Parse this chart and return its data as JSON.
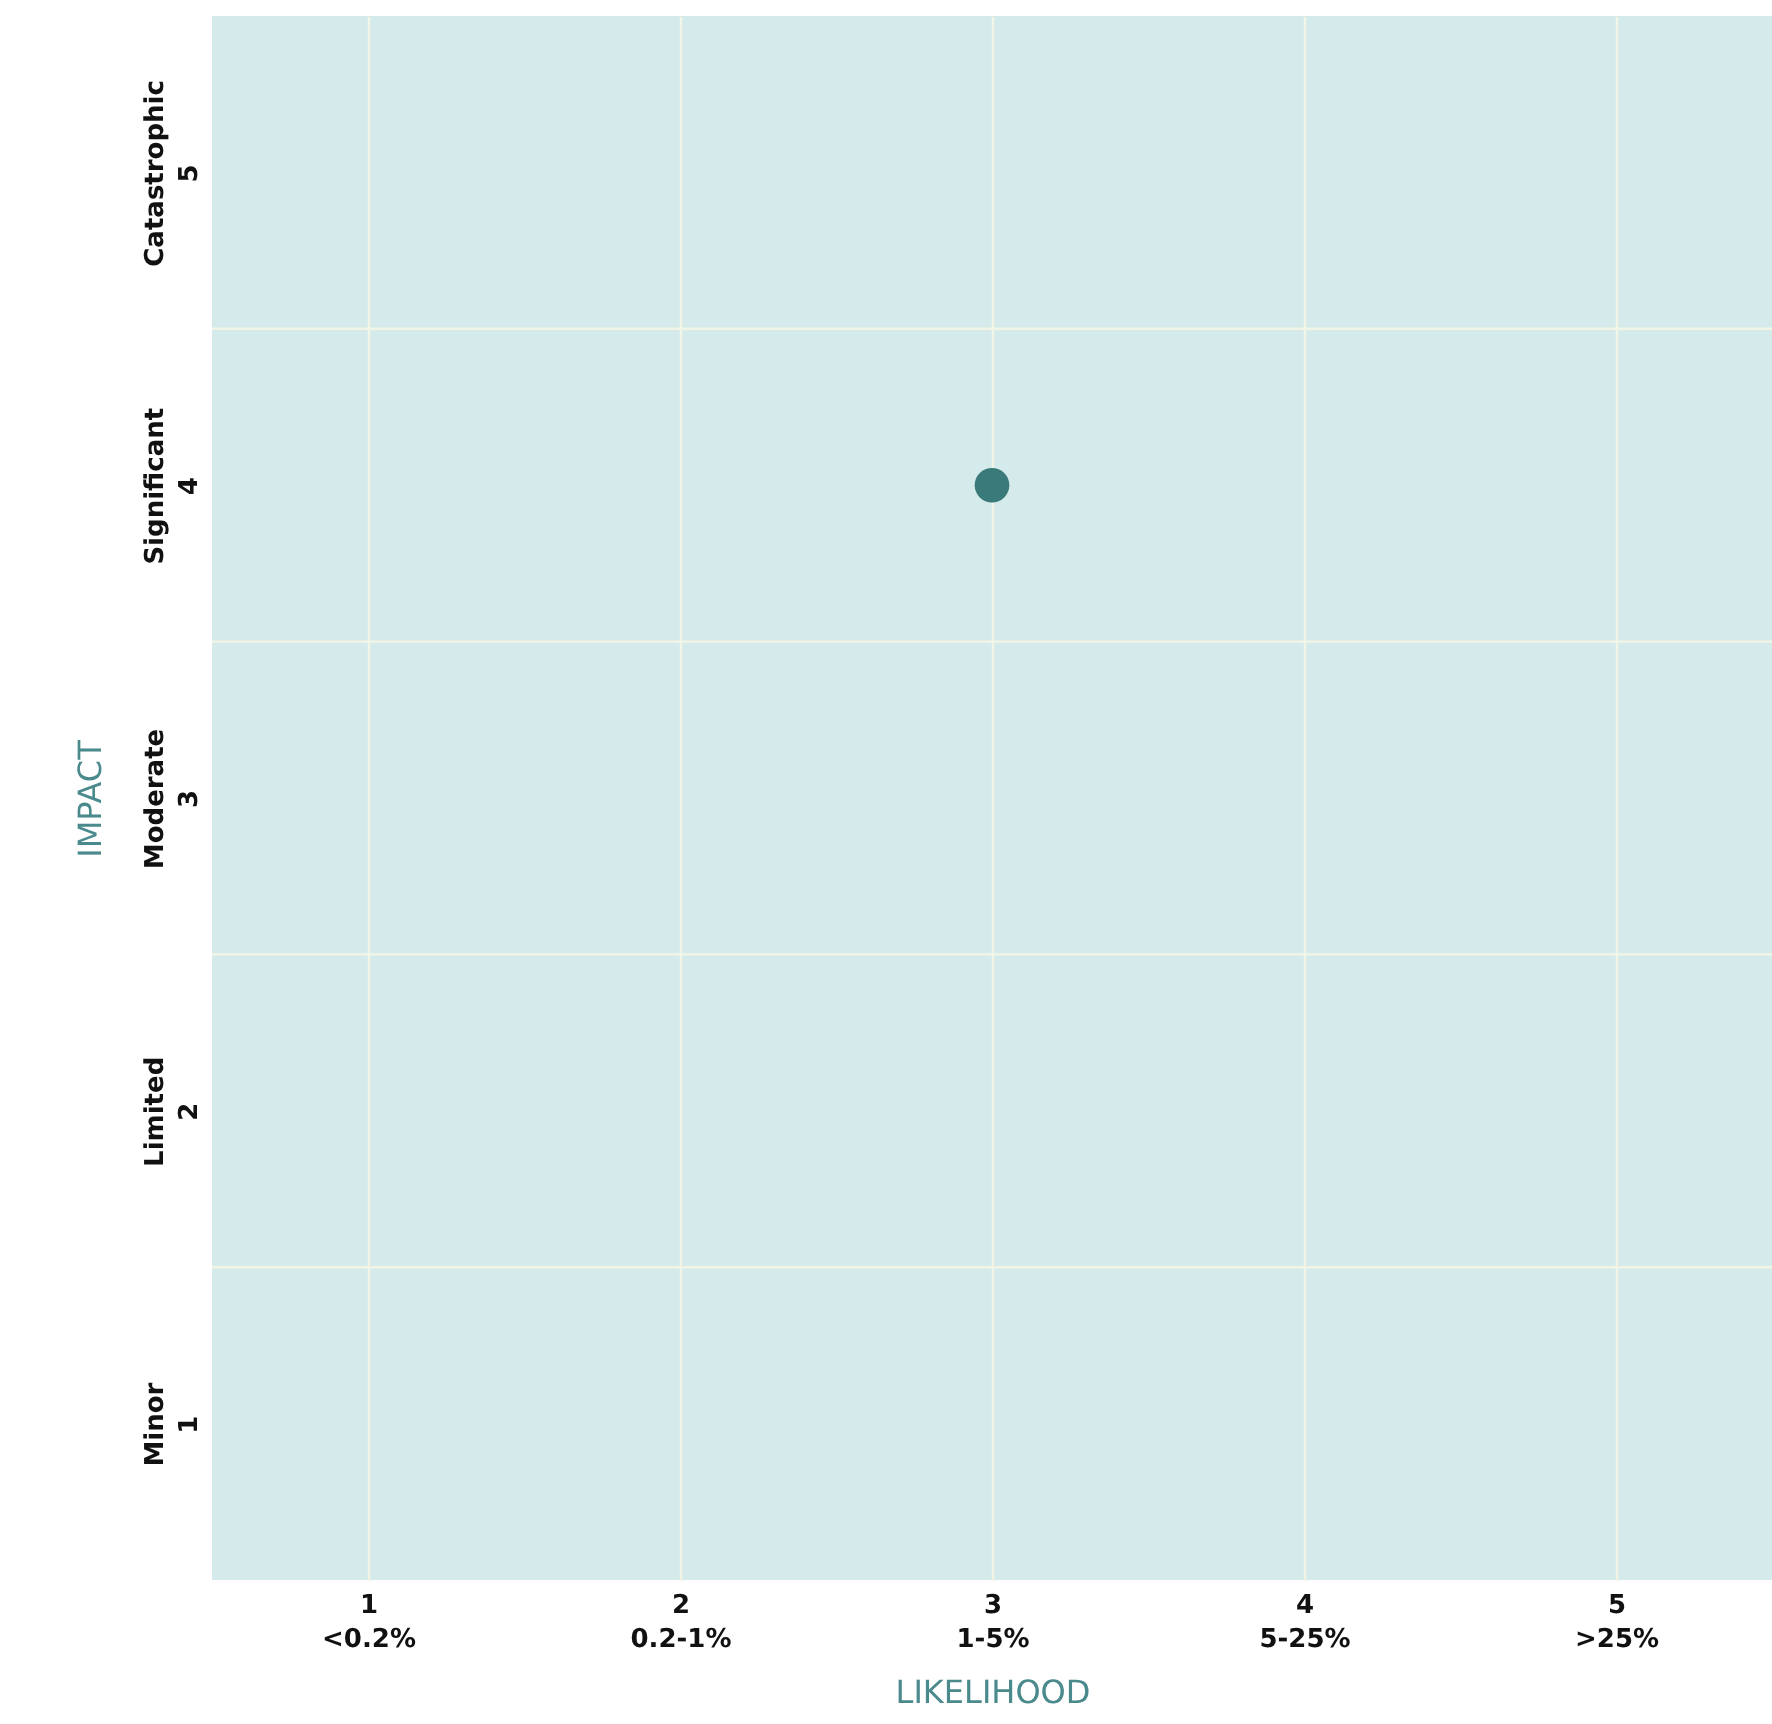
{
  "chart_data": {
    "type": "scatter",
    "xlabel": "LIKELIHOOD",
    "ylabel": "IMPACT",
    "categories": [
      "1\n<0.2%",
      "2\n0.2-1%",
      "3\n1-5%",
      "4\n5-25%",
      "5\n>25%"
    ],
    "series": [
      {
        "color": "#3b7a7b",
        "values": [
          null,
          null,
          4,
          null,
          null
        ]
      }
    ],
    "ylim": [
      0.5,
      5.5
    ],
    "yticks": [
      1,
      2,
      3,
      4,
      5
    ],
    "annotations": [
      "Minor",
      "Limited",
      "Moderate",
      "Significant",
      "Catastrophic"
    ],
    "ref_lines": [
      {
        "axis": "y",
        "value": 1.5,
        "label": null
      },
      {
        "axis": "y",
        "value": 2.5,
        "label": null
      },
      {
        "axis": "y",
        "value": 3.5,
        "label": null
      },
      {
        "axis": "y",
        "value": 4.5,
        "label": null
      }
    ],
    "grid": "x",
    "marker": "circle"
  }
}
